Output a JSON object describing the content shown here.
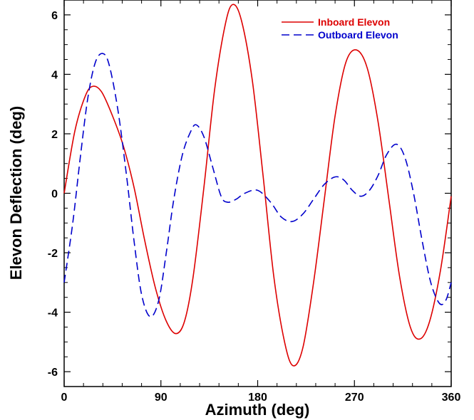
{
  "chart_data": {
    "type": "line",
    "xlabel": "Azimuth (deg)",
    "ylabel": "Elevon Deflection (deg)",
    "xlim": [
      0,
      360
    ],
    "ylim": [
      -6.5,
      6.5
    ],
    "xticks": [
      0,
      90,
      180,
      270,
      360
    ],
    "xtick_labels": [
      "0",
      "90",
      "180",
      "270",
      "360"
    ],
    "yticks": [
      -6,
      -4,
      -2,
      0,
      2,
      4,
      6
    ],
    "ytick_labels": [
      "-6",
      "-4",
      "-2",
      "0",
      "2",
      "4",
      "6"
    ],
    "grid": false,
    "legend_position": "top-right",
    "series": [
      {
        "name": "Inboard Elevon",
        "color": "#dd0000",
        "style": "solid",
        "points": [
          [
            0,
            0.0
          ],
          [
            10,
            2.1
          ],
          [
            20,
            3.3
          ],
          [
            27,
            3.6
          ],
          [
            35,
            3.4
          ],
          [
            45,
            2.6
          ],
          [
            55,
            1.6
          ],
          [
            65,
            0.2
          ],
          [
            75,
            -1.6
          ],
          [
            85,
            -3.2
          ],
          [
            95,
            -4.3
          ],
          [
            104,
            -4.72
          ],
          [
            112,
            -4.3
          ],
          [
            120,
            -2.8
          ],
          [
            130,
            0.2
          ],
          [
            140,
            3.5
          ],
          [
            150,
            5.7
          ],
          [
            157,
            6.35
          ],
          [
            165,
            5.8
          ],
          [
            175,
            3.8
          ],
          [
            185,
            0.6
          ],
          [
            195,
            -2.8
          ],
          [
            205,
            -5.0
          ],
          [
            213,
            -5.8
          ],
          [
            222,
            -5.2
          ],
          [
            232,
            -3.0
          ],
          [
            242,
            -0.2
          ],
          [
            252,
            2.6
          ],
          [
            262,
            4.4
          ],
          [
            272,
            4.82
          ],
          [
            282,
            4.2
          ],
          [
            292,
            2.4
          ],
          [
            302,
            -0.2
          ],
          [
            312,
            -2.8
          ],
          [
            322,
            -4.5
          ],
          [
            331,
            -4.9
          ],
          [
            340,
            -4.3
          ],
          [
            350,
            -2.6
          ],
          [
            360,
            -0.1
          ]
        ]
      },
      {
        "name": "Outboard Elevon",
        "color": "#0000cc",
        "style": "dashed",
        "points": [
          [
            0,
            -3.0
          ],
          [
            8,
            -1.0
          ],
          [
            15,
            1.2
          ],
          [
            22,
            3.2
          ],
          [
            29,
            4.4
          ],
          [
            36,
            4.7
          ],
          [
            42,
            4.3
          ],
          [
            50,
            2.8
          ],
          [
            58,
            0.6
          ],
          [
            65,
            -1.6
          ],
          [
            72,
            -3.4
          ],
          [
            80,
            -4.15
          ],
          [
            88,
            -3.6
          ],
          [
            95,
            -2.0
          ],
          [
            102,
            -0.2
          ],
          [
            110,
            1.3
          ],
          [
            118,
            2.1
          ],
          [
            123,
            2.3
          ],
          [
            130,
            1.9
          ],
          [
            138,
            0.9
          ],
          [
            146,
            -0.1
          ],
          [
            152,
            -0.3
          ],
          [
            160,
            -0.2
          ],
          [
            168,
            0.0
          ],
          [
            180,
            0.1
          ],
          [
            192,
            -0.3
          ],
          [
            202,
            -0.8
          ],
          [
            212,
            -0.95
          ],
          [
            222,
            -0.7
          ],
          [
            232,
            -0.2
          ],
          [
            242,
            0.3
          ],
          [
            252,
            0.55
          ],
          [
            260,
            0.45
          ],
          [
            268,
            0.1
          ],
          [
            276,
            -0.1
          ],
          [
            284,
            0.1
          ],
          [
            292,
            0.6
          ],
          [
            300,
            1.3
          ],
          [
            309,
            1.65
          ],
          [
            317,
            1.2
          ],
          [
            325,
            0.0
          ],
          [
            333,
            -1.6
          ],
          [
            341,
            -3.0
          ],
          [
            349,
            -3.7
          ],
          [
            355,
            -3.6
          ],
          [
            360,
            -3.0
          ]
        ]
      }
    ]
  }
}
